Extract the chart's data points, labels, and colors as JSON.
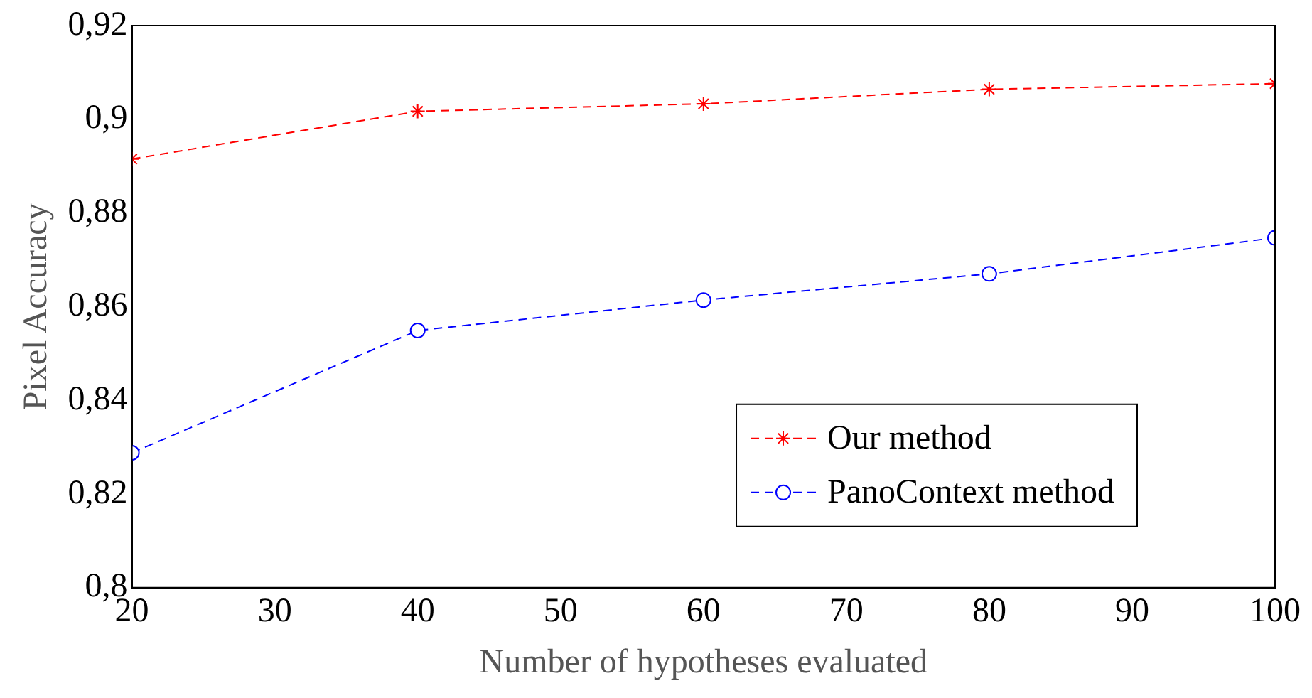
{
  "chart_data": {
    "type": "line",
    "xlabel": "Number of hypotheses evaluated",
    "ylabel": "Pixel Accuracy",
    "x": [
      20,
      40,
      60,
      80,
      100
    ],
    "series": [
      {
        "name": "Our method",
        "color": "#ff0000",
        "marker": "cross",
        "values": [
          0.8915,
          0.9017,
          0.9033,
          0.9064,
          0.9076
        ]
      },
      {
        "name": "PanoContext method",
        "color": "#0000ff",
        "marker": "circle",
        "values": [
          0.8288,
          0.8549,
          0.8614,
          0.867,
          0.8747
        ]
      }
    ],
    "xlim": [
      20,
      100
    ],
    "xticks": [
      20,
      30,
      40,
      50,
      60,
      70,
      80,
      90,
      100
    ],
    "ylim": [
      0.8,
      0.92
    ],
    "yticks": [
      {
        "value": 0.8,
        "label": "0,8"
      },
      {
        "value": 0.82,
        "label": "0,82"
      },
      {
        "value": 0.84,
        "label": "0,84"
      },
      {
        "value": 0.86,
        "label": "0,86"
      },
      {
        "value": 0.88,
        "label": "0,88"
      },
      {
        "value": 0.9,
        "label": "0,9"
      },
      {
        "value": 0.92,
        "label": "0,92"
      }
    ],
    "grid": false,
    "legend": "bottom right",
    "line_style": "dashed"
  }
}
